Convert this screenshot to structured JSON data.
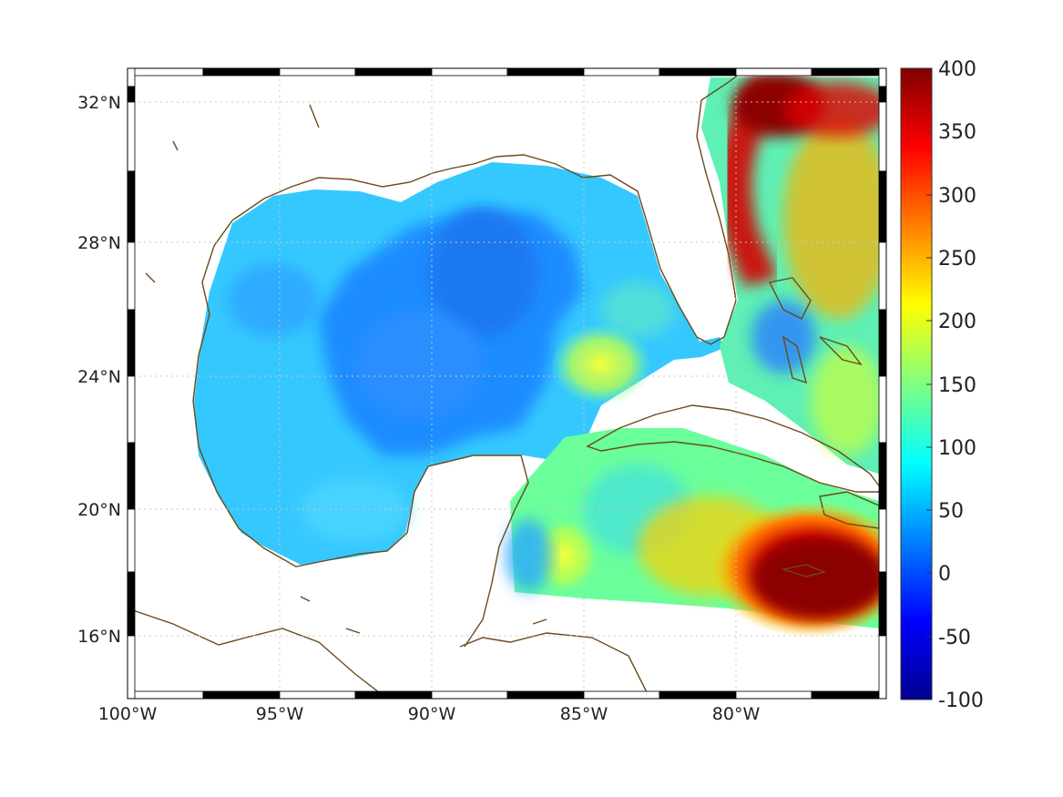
{
  "map": {
    "lon_range": [
      -100,
      -75
    ],
    "lat_range": [
      14.3,
      33
    ],
    "x_ticks": [
      "100°W",
      "95°W",
      "90°W",
      "85°W",
      "80°W"
    ],
    "y_ticks": [
      "32°N",
      "28°N",
      "24°N",
      "20°N",
      "16°N"
    ],
    "grid": "dotted",
    "frame": "black-white checkered border",
    "coastline_color": "#6b4a1a",
    "colormap": "jet"
  },
  "colorbar": {
    "ticks": [
      "400",
      "350",
      "300",
      "250",
      "200",
      "150",
      "100",
      "50",
      "0",
      "-50",
      "-100"
    ],
    "range": [
      -100,
      400
    ],
    "placement": "right"
  }
}
